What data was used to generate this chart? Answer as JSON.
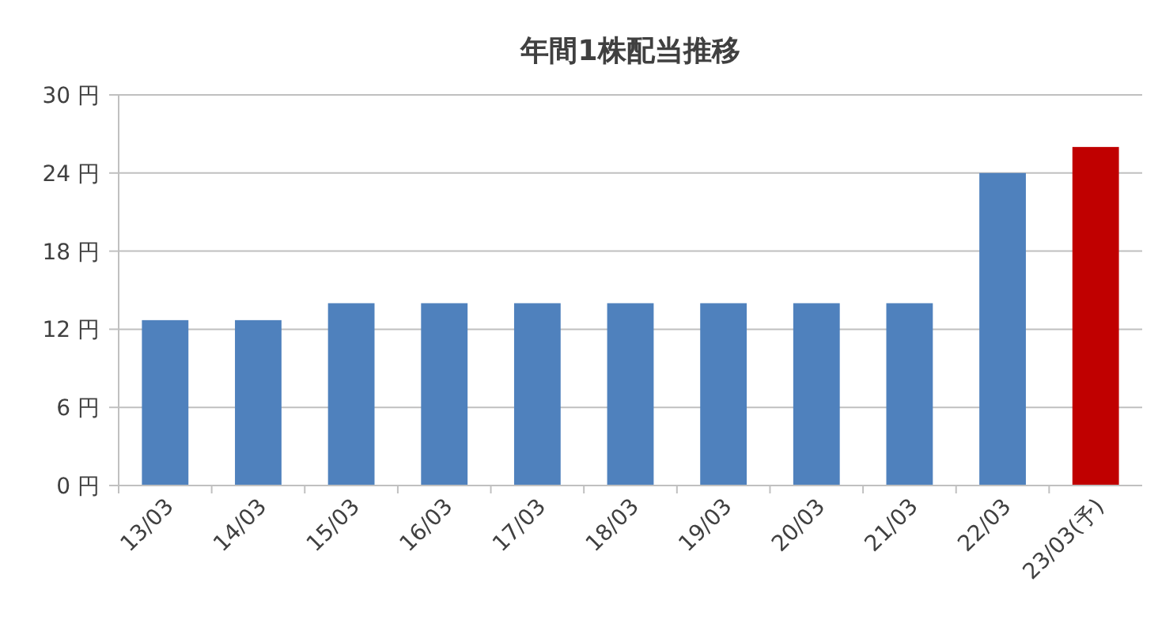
{
  "chart_data": {
    "type": "bar",
    "title": "年間1株配当推移",
    "categories": [
      "13/03",
      "14/03",
      "15/03",
      "16/03",
      "17/03",
      "18/03",
      "19/03",
      "20/03",
      "21/03",
      "22/03",
      "23/03(予)"
    ],
    "values": [
      12.7,
      12.7,
      14,
      14,
      14,
      14,
      14,
      14,
      14,
      24,
      26
    ],
    "colors": [
      "#4f81bd",
      "#4f81bd",
      "#4f81bd",
      "#4f81bd",
      "#4f81bd",
      "#4f81bd",
      "#4f81bd",
      "#4f81bd",
      "#4f81bd",
      "#4f81bd",
      "#c00000"
    ],
    "ylim": [
      0,
      30
    ],
    "yticks": [
      {
        "value": 0,
        "label": "0 円"
      },
      {
        "value": 6,
        "label": "6 円"
      },
      {
        "value": 12,
        "label": "12 円"
      },
      {
        "value": 18,
        "label": "18 円"
      },
      {
        "value": 24,
        "label": "24 円"
      },
      {
        "value": 30,
        "label": "30 円"
      }
    ],
    "grid": "y"
  }
}
